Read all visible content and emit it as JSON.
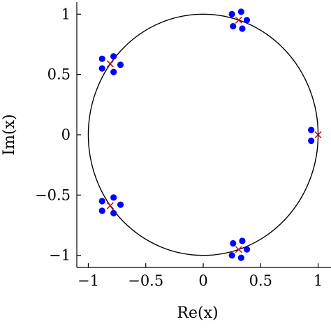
{
  "chart_data": {
    "type": "scatter",
    "title": "",
    "xlabel": "Re(x)",
    "ylabel": "Im(x)",
    "xlim": [
      -1.1,
      1.1
    ],
    "ylim": [
      -1.1,
      1.1
    ],
    "grid": false,
    "x_ticks": [
      {
        "value": -1,
        "label": "−1"
      },
      {
        "value": -0.5,
        "label": "−0.5"
      },
      {
        "value": 0,
        "label": "0"
      },
      {
        "value": 0.5,
        "label": "0.5"
      },
      {
        "value": 1,
        "label": "1"
      }
    ],
    "y_ticks": [
      {
        "value": -1,
        "label": "−1"
      },
      {
        "value": -0.5,
        "label": "−0.5"
      },
      {
        "value": 0,
        "label": "0"
      },
      {
        "value": 0.5,
        "label": "0.5"
      },
      {
        "value": 1,
        "label": "1"
      }
    ],
    "circle": {
      "cx": 0,
      "cy": 0,
      "r": 1,
      "color": "#000000"
    },
    "series": [
      {
        "marker": "circle",
        "color": "#0000ff",
        "points": [
          [
            0.25,
            1.0
          ],
          [
            0.33,
            1.02
          ],
          [
            0.38,
            0.95
          ],
          [
            0.26,
            0.9
          ],
          [
            0.34,
            0.88
          ],
          [
            -0.88,
            0.63
          ],
          [
            -0.78,
            0.65
          ],
          [
            -0.72,
            0.58
          ],
          [
            -0.88,
            0.55
          ],
          [
            -0.78,
            0.52
          ],
          [
            0.94,
            0.04
          ],
          [
            0.94,
            -0.05
          ],
          [
            -0.88,
            -0.55
          ],
          [
            -0.78,
            -0.52
          ],
          [
            -0.72,
            -0.58
          ],
          [
            -0.88,
            -0.63
          ],
          [
            -0.78,
            -0.65
          ],
          [
            0.25,
            -1.0
          ],
          [
            0.33,
            -1.02
          ],
          [
            0.38,
            -0.95
          ],
          [
            0.26,
            -0.9
          ],
          [
            0.34,
            -0.88
          ]
        ]
      },
      {
        "marker": "x",
        "color": "#cc0000",
        "points": [
          [
            0.309,
            0.951
          ],
          [
            -0.809,
            0.588
          ],
          [
            1.0,
            0.0
          ],
          [
            -0.809,
            -0.588
          ],
          [
            0.309,
            -0.951
          ]
        ]
      }
    ]
  }
}
